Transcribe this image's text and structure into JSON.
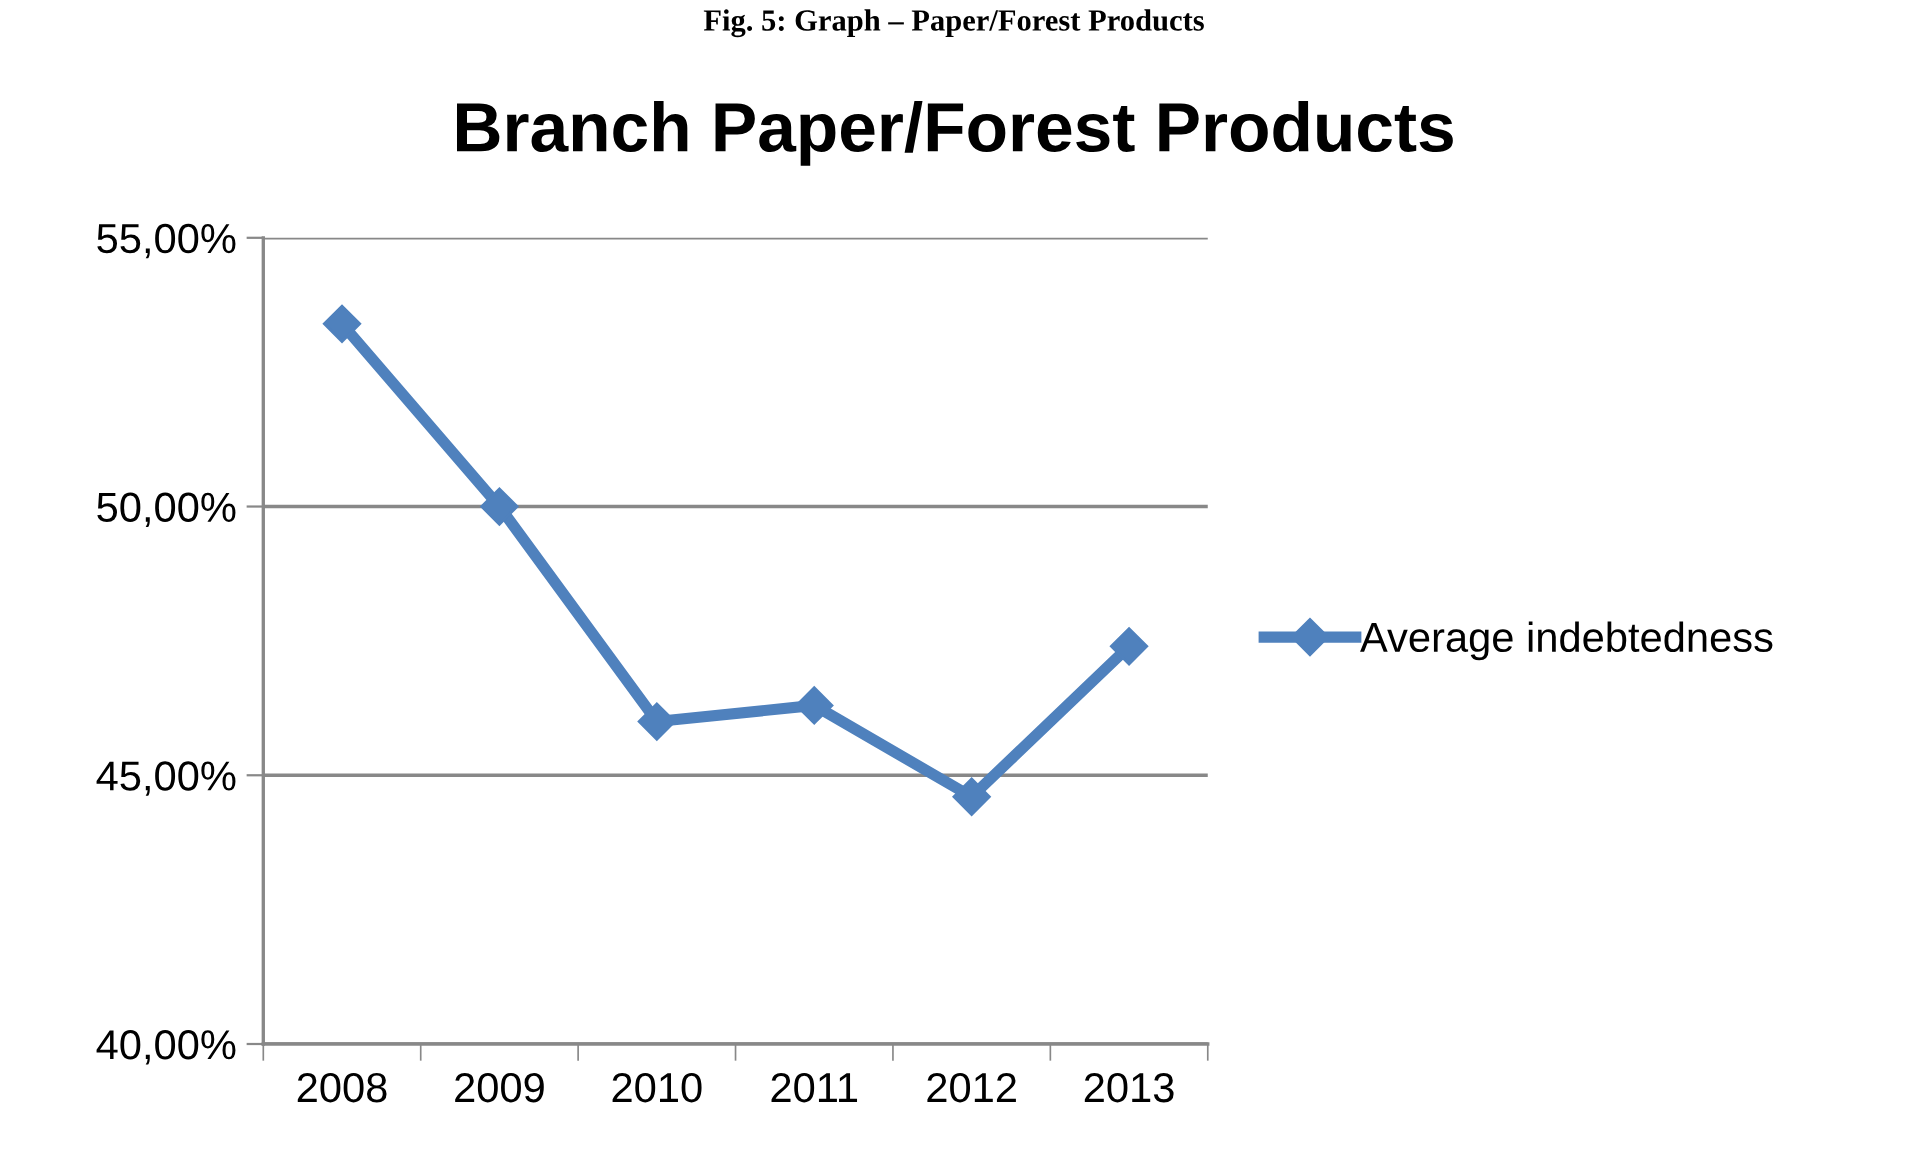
{
  "chart_data": {
    "type": "line",
    "title": "Branch Paper/Forest Products",
    "annotations": [
      "Fig. 5: Graph – Paper/Forest Products"
    ],
    "categories": [
      "2008",
      "2009",
      "2010",
      "2011",
      "2012",
      "2013"
    ],
    "series": [
      {
        "name": "Average indebtedness",
        "color": "#4f81bd",
        "values": [
          53.4,
          50.0,
          46.0,
          46.3,
          44.6,
          47.4
        ]
      }
    ],
    "ylim": [
      40,
      55
    ],
    "yticks": [
      {
        "value": 40,
        "label": "40,00%"
      },
      {
        "value": 45,
        "label": "45,00%"
      },
      {
        "value": 50,
        "label": "50,00%"
      },
      {
        "value": 55,
        "label": "55,00%"
      }
    ],
    "grid": "y",
    "legend": "right",
    "marker": "diamond",
    "line_style": "solid"
  }
}
